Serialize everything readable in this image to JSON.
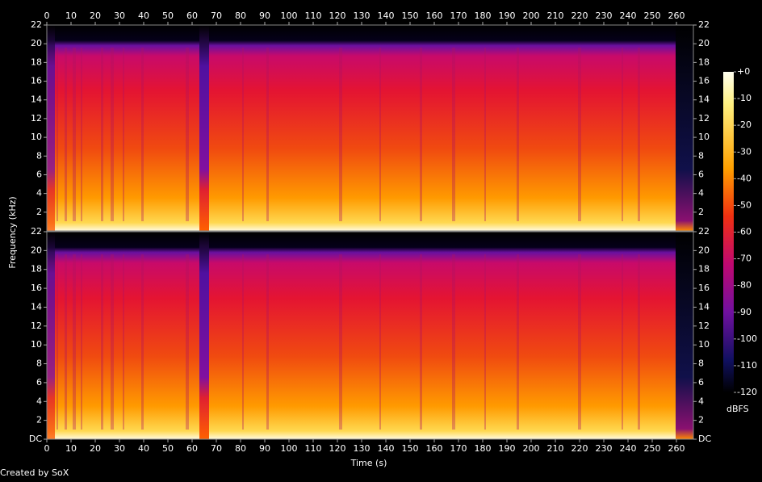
{
  "chart_data": {
    "type": "spectrogram",
    "xlabel": "Time (s)",
    "ylabel": "Frequency (kHz)",
    "footer": "Created by SoX",
    "xlim": [
      0,
      267
    ],
    "xticks": [
      0,
      10,
      20,
      30,
      40,
      50,
      60,
      70,
      80,
      90,
      100,
      110,
      120,
      130,
      140,
      150,
      160,
      170,
      180,
      190,
      200,
      210,
      220,
      230,
      240,
      250,
      260
    ],
    "panels": [
      {
        "ylim": [
          0,
          22
        ],
        "yticks": [
          2,
          4,
          6,
          8,
          10,
          12,
          14,
          16,
          18,
          20,
          22
        ]
      },
      {
        "ylim": [
          0,
          22
        ],
        "yticks": [
          {
            "value": 0,
            "label": "DC"
          },
          2,
          4,
          6,
          8,
          10,
          12,
          14,
          16,
          18,
          20,
          22
        ]
      }
    ],
    "colorbar": {
      "label": "dBFS",
      "lim": [
        -120,
        0
      ],
      "ticks": [
        {
          "value": 0,
          "label": "+0"
        },
        -10,
        -20,
        -30,
        -40,
        -50,
        -60,
        -70,
        -80,
        -90,
        -100,
        -110,
        -120
      ]
    }
  }
}
